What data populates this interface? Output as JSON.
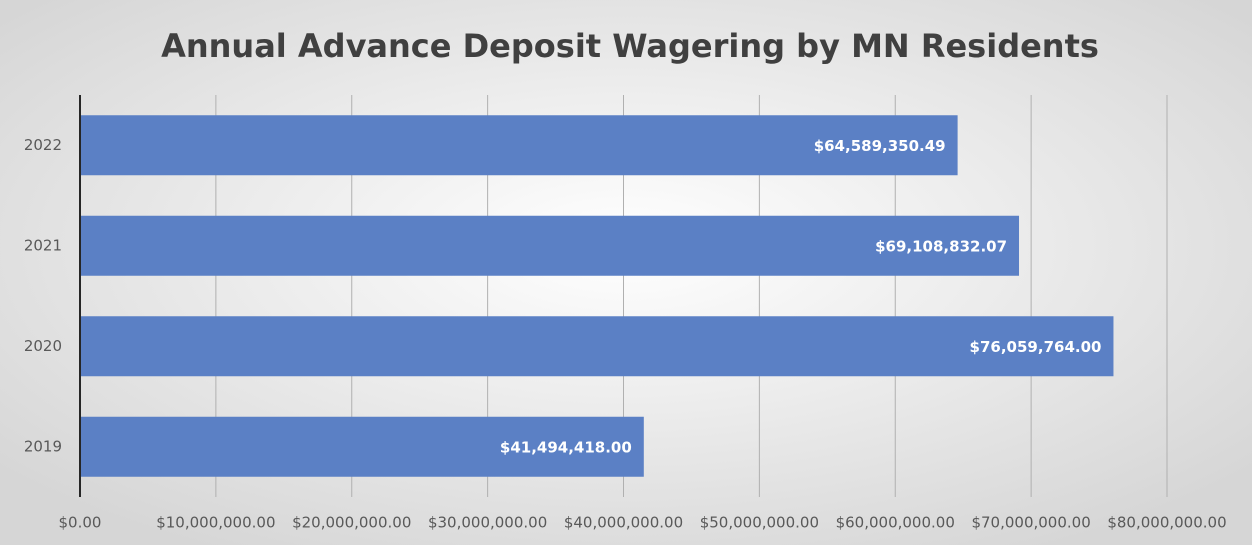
{
  "chart_data": {
    "type": "bar",
    "orientation": "horizontal",
    "title": "Annual Advance Deposit Wagering by MN Residents",
    "categories": [
      "2022",
      "2021",
      "2020",
      "2019"
    ],
    "values": [
      64589350.49,
      69108832.07,
      76059764.0,
      41494418.0
    ],
    "value_labels": [
      "$64,589,350.49",
      "$69,108,832.07",
      "$76,059,764.00",
      "$41,494,418.00"
    ],
    "color": "#5b80c5",
    "xlim": [
      0,
      80000000
    ],
    "xticks": [
      {
        "value": 0,
        "label": "$0.00"
      },
      {
        "value": 10000000,
        "label": "$10,000,000.00"
      },
      {
        "value": 20000000,
        "label": "$20,000,000.00"
      },
      {
        "value": 30000000,
        "label": "$30,000,000.00"
      },
      {
        "value": 40000000,
        "label": "$40,000,000.00"
      },
      {
        "value": 50000000,
        "label": "$50,000,000.00"
      },
      {
        "value": 60000000,
        "label": "$60,000,000.00"
      },
      {
        "value": 70000000,
        "label": "$70,000,000.00"
      },
      {
        "value": 80000000,
        "label": "$80,000,000.00"
      }
    ],
    "grid": true
  }
}
